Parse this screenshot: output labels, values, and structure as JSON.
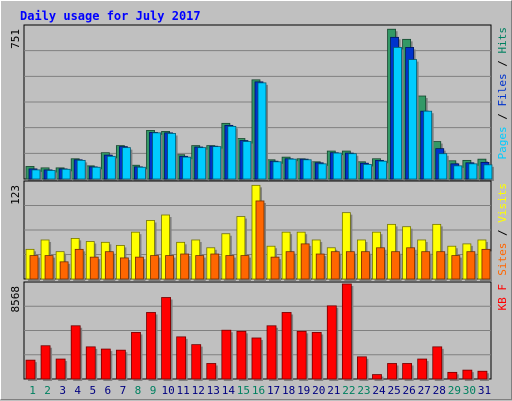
{
  "chart_data": {
    "type": "bar",
    "title": "Daily usage for July 2017",
    "categories": [
      "1",
      "2",
      "3",
      "4",
      "5",
      "6",
      "7",
      "8",
      "9",
      "10",
      "11",
      "12",
      "13",
      "14",
      "15",
      "16",
      "17",
      "18",
      "19",
      "20",
      "21",
      "22",
      "23",
      "24",
      "25",
      "26",
      "27",
      "28",
      "29",
      "30",
      "31"
    ],
    "weekend_days": [
      "1",
      "2",
      "8",
      "9",
      "15",
      "16",
      "22",
      "23",
      "29",
      "30"
    ],
    "panels": [
      {
        "id": "top",
        "max_label": "751",
        "ylim": [
          0,
          751
        ],
        "legend": [
          "Pages",
          "/",
          "Files",
          "/",
          "Hits"
        ],
        "legend_colors": [
          "#00ccff",
          "#000000",
          "#0033cc",
          "#000000",
          "#008060"
        ],
        "series": [
          {
            "name": "Hits",
            "color": "#339966",
            "values": [
              62,
              55,
              55,
              100,
              65,
              130,
              165,
              68,
              240,
              235,
              120,
              165,
              165,
              275,
              200,
              490,
              95,
              108,
              100,
              85,
              138,
              138,
              85,
              100,
              740,
              690,
              410,
              185,
              90,
              92,
              98
            ]
          },
          {
            "name": "Files",
            "color": "#0033cc",
            "values": [
              50,
              45,
              50,
              95,
              60,
              118,
              160,
              60,
              230,
              228,
              112,
              158,
              162,
              265,
              190,
              480,
              88,
              100,
              98,
              80,
              130,
              128,
              78,
              92,
              700,
              650,
              335,
              150,
              75,
              80,
              82
            ]
          },
          {
            "name": "Pages",
            "color": "#00ccff",
            "values": [
              45,
              42,
              48,
              92,
              58,
              112,
              155,
              58,
              228,
              225,
              108,
              155,
              160,
              260,
              185,
              475,
              85,
              98,
              95,
              75,
              128,
              125,
              72,
              88,
              650,
              590,
              335,
              125,
              65,
              75,
              70
            ]
          }
        ]
      },
      {
        "id": "middle",
        "max_label": "123",
        "ylim": [
          0,
          123
        ],
        "legend": [
          "Sites",
          "/",
          "Visits"
        ],
        "legend_colors": [
          "#ff6600",
          "#000000",
          "#ffff00"
        ],
        "series": [
          {
            "name": "Visits",
            "color": "#ffff00",
            "values": [
              38,
              50,
              35,
              52,
              48,
              47,
              43,
              60,
              75,
              82,
              47,
              50,
              40,
              58,
              80,
              120,
              42,
              60,
              60,
              50,
              40,
              85,
              50,
              60,
              70,
              67,
              50,
              70,
              42,
              45,
              50
            ]
          },
          {
            "name": "Sites",
            "color": "#ff6600",
            "values": [
              30,
              30,
              22,
              38,
              28,
              35,
              27,
              28,
              30,
              30,
              32,
              30,
              32,
              30,
              30,
              100,
              28,
              35,
              45,
              32,
              35,
              35,
              35,
              40,
              35,
              40,
              35,
              35,
              30,
              35,
              38
            ]
          }
        ]
      },
      {
        "id": "bottom",
        "max_label": "8568",
        "ylim": [
          0,
          8568
        ],
        "legend": [
          "KB",
          "F"
        ],
        "legend_colors": [
          "#ff0000",
          "#ff0000"
        ],
        "series": [
          {
            "name": "KB F",
            "color": "#ff0000",
            "values": [
              1700,
              3000,
              1800,
              4800,
              2900,
              2700,
              2600,
              4200,
              6000,
              7350,
              3800,
              3100,
              1400,
              4400,
              4300,
              3700,
              4800,
              6000,
              4300,
              4200,
              6600,
              8568,
              2000,
              400,
              1400,
              1400,
              1800,
              2900,
              600,
              800,
              700
            ]
          }
        ]
      }
    ]
  }
}
